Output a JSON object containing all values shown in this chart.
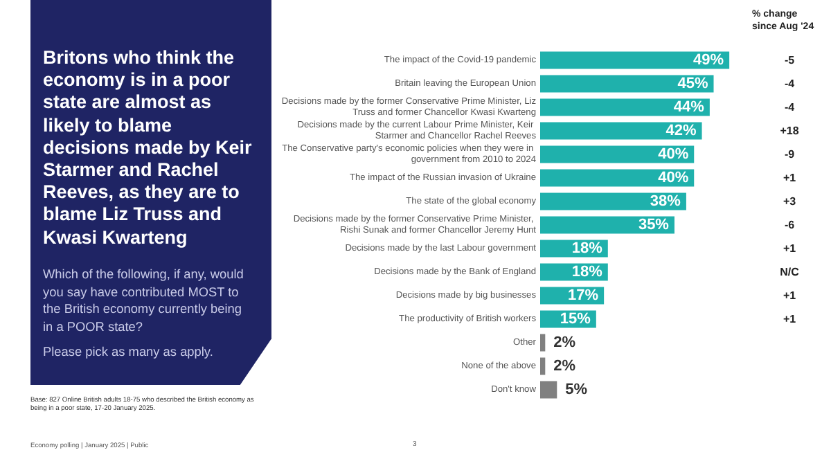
{
  "chart_data": {
    "type": "bar",
    "orientation": "horizontal",
    "title": "Britons who think the economy is in a poor state are almost as likely to blame decisions made by Keir Starmer and Rachel Reeves, as they are to blame Liz Truss and Kwasi Kwarteng",
    "subtitle": "Which of the following, if any, would you say have contributed MOST to the British economy currently being in a POOR state?",
    "categories": [
      "The impact of the Covid-19 pandemic",
      "Britain leaving the European Union",
      "Decisions made by the former Conservative Prime Minister, Liz Truss and former Chancellor Kwasi Kwarteng",
      "Decisions made by the current Labour Prime Minister, Keir Starmer and Chancellor Rachel Reeves",
      "The Conservative party's economic policies when they were in government from 2010 to 2024",
      "The impact of the Russian invasion of Ukraine",
      "The state of the global economy",
      "Decisions made by the former Conservative Prime Minister, Rishi Sunak and former Chancellor Jeremy Hunt",
      "Decisions made by the last Labour government",
      "Decisions made by the Bank of England",
      "Decisions made by big businesses",
      "The productivity of British workers",
      "Other",
      "None of the above",
      "Don't know"
    ],
    "values": [
      49,
      45,
      44,
      42,
      40,
      40,
      38,
      35,
      18,
      18,
      17,
      15,
      2,
      2,
      5
    ],
    "value_labels": [
      "49%",
      "45%",
      "44%",
      "42%",
      "40%",
      "40%",
      "38%",
      "35%",
      "18%",
      "18%",
      "17%",
      "15%",
      "2%",
      "2%",
      "5%"
    ],
    "colors": [
      "#1fb1ac",
      "#1fb1ac",
      "#1fb1ac",
      "#1fb1ac",
      "#1fb1ac",
      "#1fb1ac",
      "#1fb1ac",
      "#1fb1ac",
      "#1fb1ac",
      "#1fb1ac",
      "#1fb1ac",
      "#1fb1ac",
      "#808080",
      "#808080",
      "#808080"
    ],
    "annotations": [
      "Please pick as many as apply.",
      "% change since Aug '24",
      "Base: 827 Online British adults 18-75 who described the British economy as being in a poor state, 17-20 January 2025.",
      "Economy polling | January 2025 | Public",
      "3",
      "-5",
      "-4",
      "-4",
      "+18",
      "-9",
      "+1",
      "+3",
      "-6",
      "+1",
      "N/C",
      "+1",
      "+1"
    ]
  }
}
